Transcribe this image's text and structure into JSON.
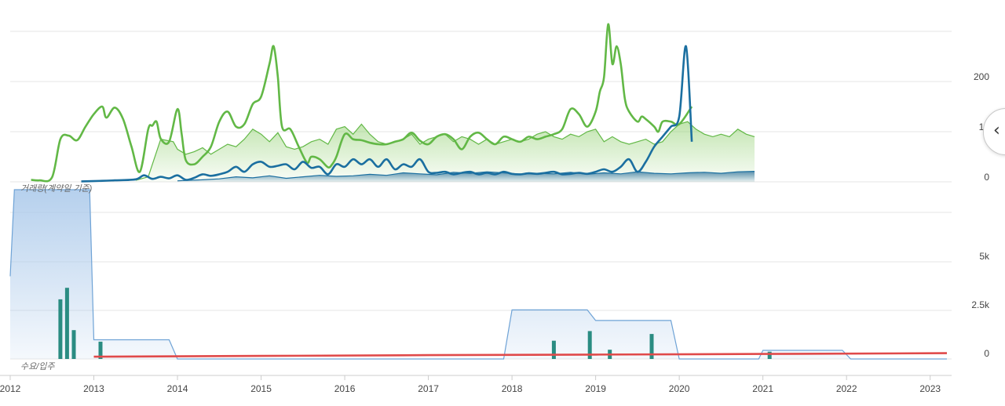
{
  "chart_data": [
    {
      "type": "line",
      "panel": "upper",
      "label": "거래량(계약일 기준)",
      "x_range": [
        2012.0,
        2023.2
      ],
      "y_ticks": [
        "0",
        "10",
        "200"
      ],
      "grid": true,
      "series": [
        {
          "style": "line",
          "color": "#62b846",
          "x": [
            2012.25,
            2012.35,
            2012.5,
            2012.6,
            2012.7,
            2012.8,
            2012.9,
            2013.0,
            2013.1,
            2013.15,
            2013.25,
            2013.35,
            2013.45,
            2013.55,
            2013.65,
            2013.7,
            2013.75,
            2013.8,
            2013.9,
            2014.0,
            2014.05,
            2014.1,
            2014.2,
            2014.3,
            2014.4,
            2014.5,
            2014.6,
            2014.7,
            2014.8,
            2014.9,
            2015.0,
            2015.1,
            2015.15,
            2015.2,
            2015.25,
            2015.35,
            2015.45,
            2015.55,
            2015.6,
            2015.7,
            2015.8,
            2015.85,
            2015.9,
            2016.0,
            2016.1,
            2016.2,
            2016.3,
            2016.4,
            2016.5,
            2016.6,
            2016.7,
            2016.8,
            2016.9,
            2017.0,
            2017.1,
            2017.2,
            2017.3,
            2017.4,
            2017.5,
            2017.6,
            2017.7,
            2017.8,
            2017.9,
            2018.0,
            2018.1,
            2018.2,
            2018.3,
            2018.4,
            2018.5,
            2018.6,
            2018.7,
            2018.8,
            2018.9,
            2019.0,
            2019.05,
            2019.1,
            2019.15,
            2019.2,
            2019.25,
            2019.3,
            2019.35,
            2019.4,
            2019.5,
            2019.55,
            2019.6,
            2019.7,
            2019.75,
            2019.8,
            2019.9,
            2020.0,
            2020.15
          ],
          "y": [
            0.4,
            0.3,
            0.9,
            8.5,
            9.2,
            8.3,
            11.0,
            13.5,
            15.0,
            12.8,
            14.8,
            12.5,
            7.0,
            2.0,
            10.5,
            11.2,
            12.0,
            8.6,
            8.0,
            14.5,
            9.5,
            4.3,
            3.5,
            5.0,
            7.0,
            12.0,
            14.0,
            11.0,
            11.5,
            15.5,
            17.0,
            22.0,
            24.0,
            20.5,
            11.0,
            10.5,
            7.0,
            3.8,
            5.0,
            4.5,
            2.9,
            3.5,
            5.0,
            9.5,
            8.5,
            8.3,
            7.8,
            7.5,
            7.5,
            8.0,
            8.5,
            9.8,
            8.2,
            7.5,
            9.0,
            9.5,
            8.5,
            6.5,
            9.0,
            9.8,
            8.5,
            7.5,
            9.0,
            8.5,
            8.0,
            9.0,
            8.5,
            9.0,
            9.5,
            10.5,
            14.5,
            13.5,
            11.0,
            14.0,
            18.0,
            20.5,
            26.5,
            22.0,
            24.0,
            22.0,
            16.5,
            14.0,
            12.0,
            13.0,
            12.5,
            11.0,
            10.0,
            12.0,
            12.0,
            11.5,
            15.0
          ]
        },
        {
          "style": "area",
          "color": "#62b846",
          "x": [
            2013.5,
            2013.65,
            2013.8,
            2013.95,
            2014.0,
            2014.1,
            2014.2,
            2014.3,
            2014.4,
            2014.5,
            2014.6,
            2014.7,
            2014.8,
            2014.9,
            2015.0,
            2015.1,
            2015.2,
            2015.3,
            2015.4,
            2015.5,
            2015.6,
            2015.7,
            2015.8,
            2015.9,
            2016.0,
            2016.1,
            2016.2,
            2016.3,
            2016.4,
            2016.5,
            2016.6,
            2016.7,
            2016.8,
            2016.9,
            2017.0,
            2017.1,
            2017.2,
            2017.3,
            2017.4,
            2017.5,
            2017.6,
            2017.7,
            2017.8,
            2017.9,
            2018.0,
            2018.1,
            2018.2,
            2018.3,
            2018.4,
            2018.5,
            2018.6,
            2018.7,
            2018.8,
            2018.9,
            2019.0,
            2019.1,
            2019.2,
            2019.3,
            2019.4,
            2019.5,
            2019.6,
            2019.7,
            2019.8,
            2019.9,
            2020.0,
            2020.1,
            2020.2,
            2020.3,
            2020.4,
            2020.5,
            2020.6,
            2020.7,
            2020.8,
            2020.9
          ],
          "y": [
            0.3,
            1.0,
            8.5,
            8.0,
            6.5,
            5.5,
            6.0,
            6.8,
            5.5,
            6.5,
            7.5,
            7.0,
            8.5,
            10.5,
            9.5,
            8.0,
            9.8,
            7.0,
            6.5,
            7.0,
            8.0,
            8.5,
            7.5,
            10.5,
            11.0,
            9.5,
            11.5,
            9.5,
            8.0,
            7.5,
            8.0,
            8.5,
            9.5,
            7.5,
            8.5,
            9.0,
            9.5,
            8.0,
            9.0,
            8.5,
            7.5,
            8.5,
            7.5,
            8.0,
            8.5,
            8.0,
            8.5,
            9.5,
            10.0,
            9.0,
            8.5,
            9.5,
            9.0,
            10.0,
            10.5,
            8.0,
            9.0,
            8.0,
            7.5,
            8.0,
            8.5,
            7.5,
            8.0,
            10.0,
            11.5,
            12.0,
            10.5,
            9.5,
            9.0,
            9.5,
            9.0,
            10.5,
            9.5,
            9.0
          ]
        },
        {
          "style": "line",
          "color": "#1b6fa0",
          "x": [
            2012.85,
            2013.1,
            2013.25,
            2013.5,
            2013.6,
            2013.7,
            2013.8,
            2013.9,
            2014.0,
            2014.1,
            2014.2,
            2014.3,
            2014.4,
            2014.5,
            2014.6,
            2014.7,
            2014.8,
            2014.9,
            2015.0,
            2015.1,
            2015.2,
            2015.3,
            2015.4,
            2015.5,
            2015.6,
            2015.7,
            2015.8,
            2015.9,
            2016.0,
            2016.1,
            2016.2,
            2016.3,
            2016.4,
            2016.5,
            2016.6,
            2016.7,
            2016.8,
            2016.9,
            2017.0,
            2017.1,
            2017.2,
            2017.3,
            2017.4,
            2017.5,
            2017.6,
            2017.7,
            2017.8,
            2017.9,
            2018.0,
            2018.1,
            2018.2,
            2018.3,
            2018.4,
            2018.5,
            2018.6,
            2018.7,
            2018.8,
            2018.9,
            2019.0,
            2019.1,
            2019.2,
            2019.3,
            2019.4,
            2019.5,
            2019.6,
            2019.7,
            2019.8,
            2019.9,
            2020.0,
            2020.08,
            2020.15
          ],
          "y": [
            0.1,
            0.2,
            0.3,
            0.5,
            1.3,
            0.6,
            1.0,
            0.7,
            1.3,
            0.4,
            0.8,
            1.5,
            1.2,
            1.5,
            2.0,
            3.0,
            2.0,
            3.5,
            4.0,
            3.0,
            3.2,
            3.5,
            2.5,
            4.0,
            2.8,
            3.0,
            1.5,
            3.5,
            3.0,
            4.5,
            3.5,
            4.5,
            3.0,
            4.5,
            2.5,
            3.5,
            3.0,
            4.5,
            2.0,
            1.8,
            2.0,
            1.5,
            1.8,
            2.0,
            1.5,
            1.8,
            1.5,
            2.0,
            1.6,
            1.5,
            1.7,
            1.6,
            1.8,
            2.0,
            1.5,
            1.6,
            1.8,
            1.6,
            2.0,
            2.5,
            2.0,
            3.0,
            4.5,
            2.0,
            4.0,
            7.0,
            9.0,
            11.0,
            13.0,
            24.0,
            8.0
          ]
        },
        {
          "style": "area",
          "color": "#1b6fa0",
          "x": [
            2014.0,
            2014.3,
            2014.5,
            2014.7,
            2014.9,
            2015.1,
            2015.3,
            2015.5,
            2015.7,
            2015.9,
            2016.1,
            2016.3,
            2016.5,
            2016.7,
            2016.9,
            2017.1,
            2017.3,
            2017.5,
            2017.7,
            2017.9,
            2018.1,
            2018.3,
            2018.5,
            2018.7,
            2018.9,
            2019.1,
            2019.3,
            2019.5,
            2019.7,
            2019.9,
            2020.1,
            2020.3,
            2020.5,
            2020.7,
            2020.9
          ],
          "y": [
            0.2,
            0.4,
            0.6,
            1.0,
            0.8,
            1.2,
            0.7,
            1.0,
            1.3,
            1.1,
            1.2,
            1.5,
            1.3,
            1.8,
            1.6,
            1.4,
            1.9,
            1.7,
            2.0,
            1.8,
            1.5,
            1.7,
            1.6,
            1.9,
            1.5,
            1.8,
            1.6,
            2.0,
            1.7,
            1.6,
            1.8,
            1.9,
            1.7,
            2.0,
            2.1
          ]
        }
      ]
    },
    {
      "type": "bar",
      "panel": "lower",
      "label": "수요/입주",
      "x_range": [
        2012.0,
        2023.2
      ],
      "y_ticks": [
        "0",
        "2.5k",
        "5k"
      ],
      "ylim": [
        0,
        8800
      ],
      "grid": true,
      "x_ticks": [
        "2012",
        "2013",
        "2014",
        "2015",
        "2016",
        "2017",
        "2018",
        "2019",
        "2020",
        "2021",
        "2022",
        "2023"
      ],
      "bars": {
        "color": "#2a8c82",
        "x": [
          2012.6,
          2012.68,
          2012.76,
          2013.08,
          2018.5,
          2018.93,
          2019.17,
          2019.67,
          2021.08
        ],
        "values": [
          3100,
          3700,
          1500,
          900,
          950,
          1450,
          480,
          1300,
          380
        ]
      },
      "supply_area": {
        "color": "#6fa3d6",
        "x": [
          2012.0,
          2012.05,
          2012.95,
          2013.0,
          2013.9,
          2014.0,
          2017.9,
          2018.0,
          2018.9,
          2019.0,
          2019.9,
          2020.0,
          2020.95,
          2021.0,
          2021.95,
          2022.05,
          2023.2
        ],
        "values": [
          4300,
          8800,
          8800,
          1000,
          1000,
          0,
          0,
          2550,
          2550,
          2000,
          2000,
          0,
          0,
          450,
          450,
          0,
          0
        ]
      },
      "demand_line": {
        "color": "#e04a4a",
        "x": [
          2013.0,
          2015.0,
          2017.0,
          2019.0,
          2021.0,
          2023.2
        ],
        "values": [
          120,
          160,
          200,
          230,
          260,
          300
        ]
      }
    }
  ]
}
